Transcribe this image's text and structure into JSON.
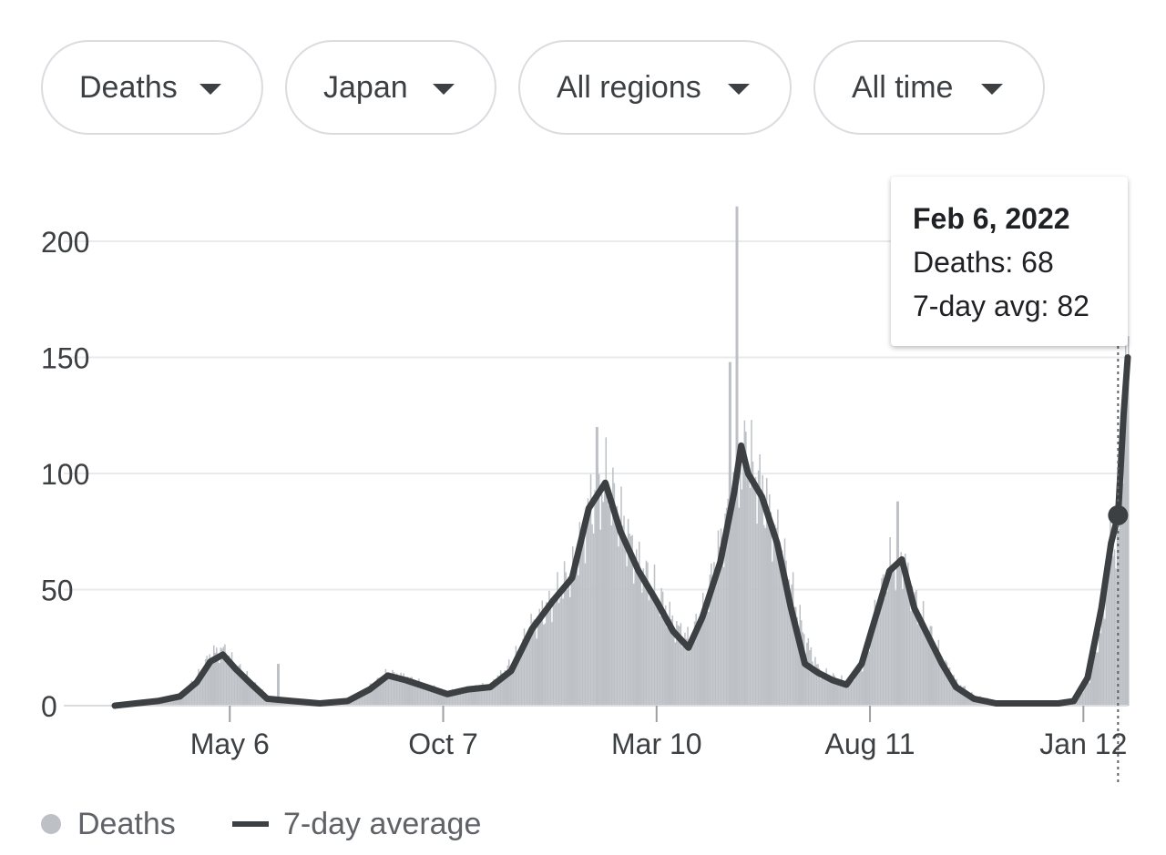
{
  "filters": [
    {
      "name": "metric",
      "label": "Deaths"
    },
    {
      "name": "country",
      "label": "Japan"
    },
    {
      "name": "regions",
      "label": "All regions"
    },
    {
      "name": "time",
      "label": "All time"
    }
  ],
  "tooltip": {
    "date": "Feb 6, 2022",
    "deaths_text": "Deaths: 68",
    "avg_text": "7-day avg: 82",
    "deaths": 68,
    "avg": 82
  },
  "legend": {
    "deaths_label": "Deaths",
    "avg_label": "7-day average"
  },
  "colors": {
    "bars": "#bdc1c6",
    "line": "#3c4043",
    "grid": "#e8eaed",
    "text": "#3c4043"
  },
  "chart_data": {
    "type": "bar",
    "title": "",
    "xlabel": "",
    "ylabel": "",
    "x_start": "2020-02-13",
    "x_end": "2022-02-13",
    "ylim": [
      0,
      220
    ],
    "y_ticks": [
      0,
      50,
      100,
      150,
      200
    ],
    "x_ticks": [
      {
        "date": "2020-05-06",
        "label": "May 6"
      },
      {
        "date": "2020-10-07",
        "label": "Oct 7"
      },
      {
        "date": "2021-03-10",
        "label": "Mar 10"
      },
      {
        "date": "2021-08-11",
        "label": "Aug 11"
      },
      {
        "date": "2022-01-12",
        "label": "Jan 12"
      }
    ],
    "grid": true,
    "legend_position": "bottom-left",
    "series": [
      {
        "name": "Deaths",
        "type": "bar",
        "points": [
          [
            "2020-02-13",
            0
          ],
          [
            "2020-02-28",
            2
          ],
          [
            "2020-03-15",
            2
          ],
          [
            "2020-03-31",
            4
          ],
          [
            "2020-04-12",
            12
          ],
          [
            "2020-04-22",
            22
          ],
          [
            "2020-05-01",
            24
          ],
          [
            "2020-05-10",
            17
          ],
          [
            "2020-05-22",
            10
          ],
          [
            "2020-06-02",
            4
          ],
          [
            "2020-06-20",
            2
          ],
          [
            "2020-07-10",
            1
          ],
          [
            "2020-07-30",
            2
          ],
          [
            "2020-08-15",
            8
          ],
          [
            "2020-08-28",
            14
          ],
          [
            "2020-09-10",
            12
          ],
          [
            "2020-09-25",
            8
          ],
          [
            "2020-10-10",
            6
          ],
          [
            "2020-10-25",
            7
          ],
          [
            "2020-11-10",
            9
          ],
          [
            "2020-11-25",
            18
          ],
          [
            "2020-12-10",
            35
          ],
          [
            "2020-12-25",
            45
          ],
          [
            "2021-01-08",
            58
          ],
          [
            "2021-01-20",
            85
          ],
          [
            "2021-02-01",
            95
          ],
          [
            "2021-02-12",
            80
          ],
          [
            "2021-02-25",
            60
          ],
          [
            "2021-03-10",
            48
          ],
          [
            "2021-03-22",
            35
          ],
          [
            "2021-04-02",
            28
          ],
          [
            "2021-04-12",
            40
          ],
          [
            "2021-04-25",
            70
          ],
          [
            "2021-05-05",
            100
          ],
          [
            "2021-05-15",
            105
          ],
          [
            "2021-05-25",
            92
          ],
          [
            "2021-06-05",
            72
          ],
          [
            "2021-06-15",
            50
          ],
          [
            "2021-06-25",
            28
          ],
          [
            "2021-07-05",
            15
          ],
          [
            "2021-07-15",
            12
          ],
          [
            "2021-07-25",
            10
          ],
          [
            "2021-08-05",
            18
          ],
          [
            "2021-08-15",
            40
          ],
          [
            "2021-08-25",
            60
          ],
          [
            "2021-09-03",
            62
          ],
          [
            "2021-09-12",
            45
          ],
          [
            "2021-09-22",
            32
          ],
          [
            "2021-10-02",
            20
          ],
          [
            "2021-10-12",
            10
          ],
          [
            "2021-10-25",
            4
          ],
          [
            "2021-11-10",
            2
          ],
          [
            "2021-11-25",
            1
          ],
          [
            "2021-12-10",
            1
          ],
          [
            "2021-12-25",
            1
          ],
          [
            "2022-01-05",
            2
          ],
          [
            "2022-01-15",
            10
          ],
          [
            "2022-01-25",
            35
          ],
          [
            "2022-02-01",
            70
          ],
          [
            "2022-02-06",
            68
          ],
          [
            "2022-02-10",
            130
          ],
          [
            "2022-02-13",
            150
          ]
        ],
        "spikes": [
          [
            "2020-06-09",
            18
          ],
          [
            "2021-01-25",
            120
          ],
          [
            "2021-05-01",
            148
          ],
          [
            "2021-05-06",
            215
          ],
          [
            "2021-05-12",
            118
          ],
          [
            "2021-08-30",
            88
          ]
        ]
      },
      {
        "name": "7-day average",
        "type": "line",
        "points": [
          [
            "2020-02-13",
            0
          ],
          [
            "2020-02-28",
            1
          ],
          [
            "2020-03-15",
            2
          ],
          [
            "2020-03-31",
            4
          ],
          [
            "2020-04-12",
            10
          ],
          [
            "2020-04-22",
            19
          ],
          [
            "2020-05-01",
            22
          ],
          [
            "2020-05-10",
            16
          ],
          [
            "2020-05-22",
            9
          ],
          [
            "2020-06-02",
            3
          ],
          [
            "2020-06-20",
            2
          ],
          [
            "2020-07-10",
            1
          ],
          [
            "2020-07-30",
            2
          ],
          [
            "2020-08-15",
            7
          ],
          [
            "2020-08-28",
            13
          ],
          [
            "2020-09-10",
            11
          ],
          [
            "2020-09-25",
            8
          ],
          [
            "2020-10-10",
            5
          ],
          [
            "2020-10-25",
            7
          ],
          [
            "2020-11-10",
            8
          ],
          [
            "2020-11-25",
            15
          ],
          [
            "2020-12-10",
            33
          ],
          [
            "2020-12-25",
            45
          ],
          [
            "2021-01-08",
            55
          ],
          [
            "2021-01-20",
            85
          ],
          [
            "2021-02-01",
            96
          ],
          [
            "2021-02-12",
            75
          ],
          [
            "2021-02-25",
            58
          ],
          [
            "2021-03-10",
            45
          ],
          [
            "2021-03-22",
            32
          ],
          [
            "2021-04-02",
            25
          ],
          [
            "2021-04-12",
            38
          ],
          [
            "2021-04-25",
            62
          ],
          [
            "2021-05-05",
            92
          ],
          [
            "2021-05-10",
            112
          ],
          [
            "2021-05-15",
            100
          ],
          [
            "2021-05-25",
            90
          ],
          [
            "2021-06-05",
            70
          ],
          [
            "2021-06-15",
            42
          ],
          [
            "2021-06-25",
            18
          ],
          [
            "2021-07-05",
            14
          ],
          [
            "2021-07-15",
            11
          ],
          [
            "2021-07-25",
            9
          ],
          [
            "2021-08-05",
            18
          ],
          [
            "2021-08-15",
            38
          ],
          [
            "2021-08-25",
            58
          ],
          [
            "2021-09-03",
            63
          ],
          [
            "2021-09-12",
            42
          ],
          [
            "2021-09-22",
            30
          ],
          [
            "2021-10-02",
            18
          ],
          [
            "2021-10-12",
            8
          ],
          [
            "2021-10-25",
            3
          ],
          [
            "2021-11-10",
            1
          ],
          [
            "2021-11-25",
            1
          ],
          [
            "2021-12-10",
            1
          ],
          [
            "2021-12-25",
            1
          ],
          [
            "2022-01-05",
            2
          ],
          [
            "2022-01-15",
            12
          ],
          [
            "2022-01-25",
            42
          ],
          [
            "2022-02-01",
            70
          ],
          [
            "2022-02-06",
            82
          ],
          [
            "2022-02-10",
            125
          ],
          [
            "2022-02-13",
            150
          ]
        ]
      }
    ]
  }
}
